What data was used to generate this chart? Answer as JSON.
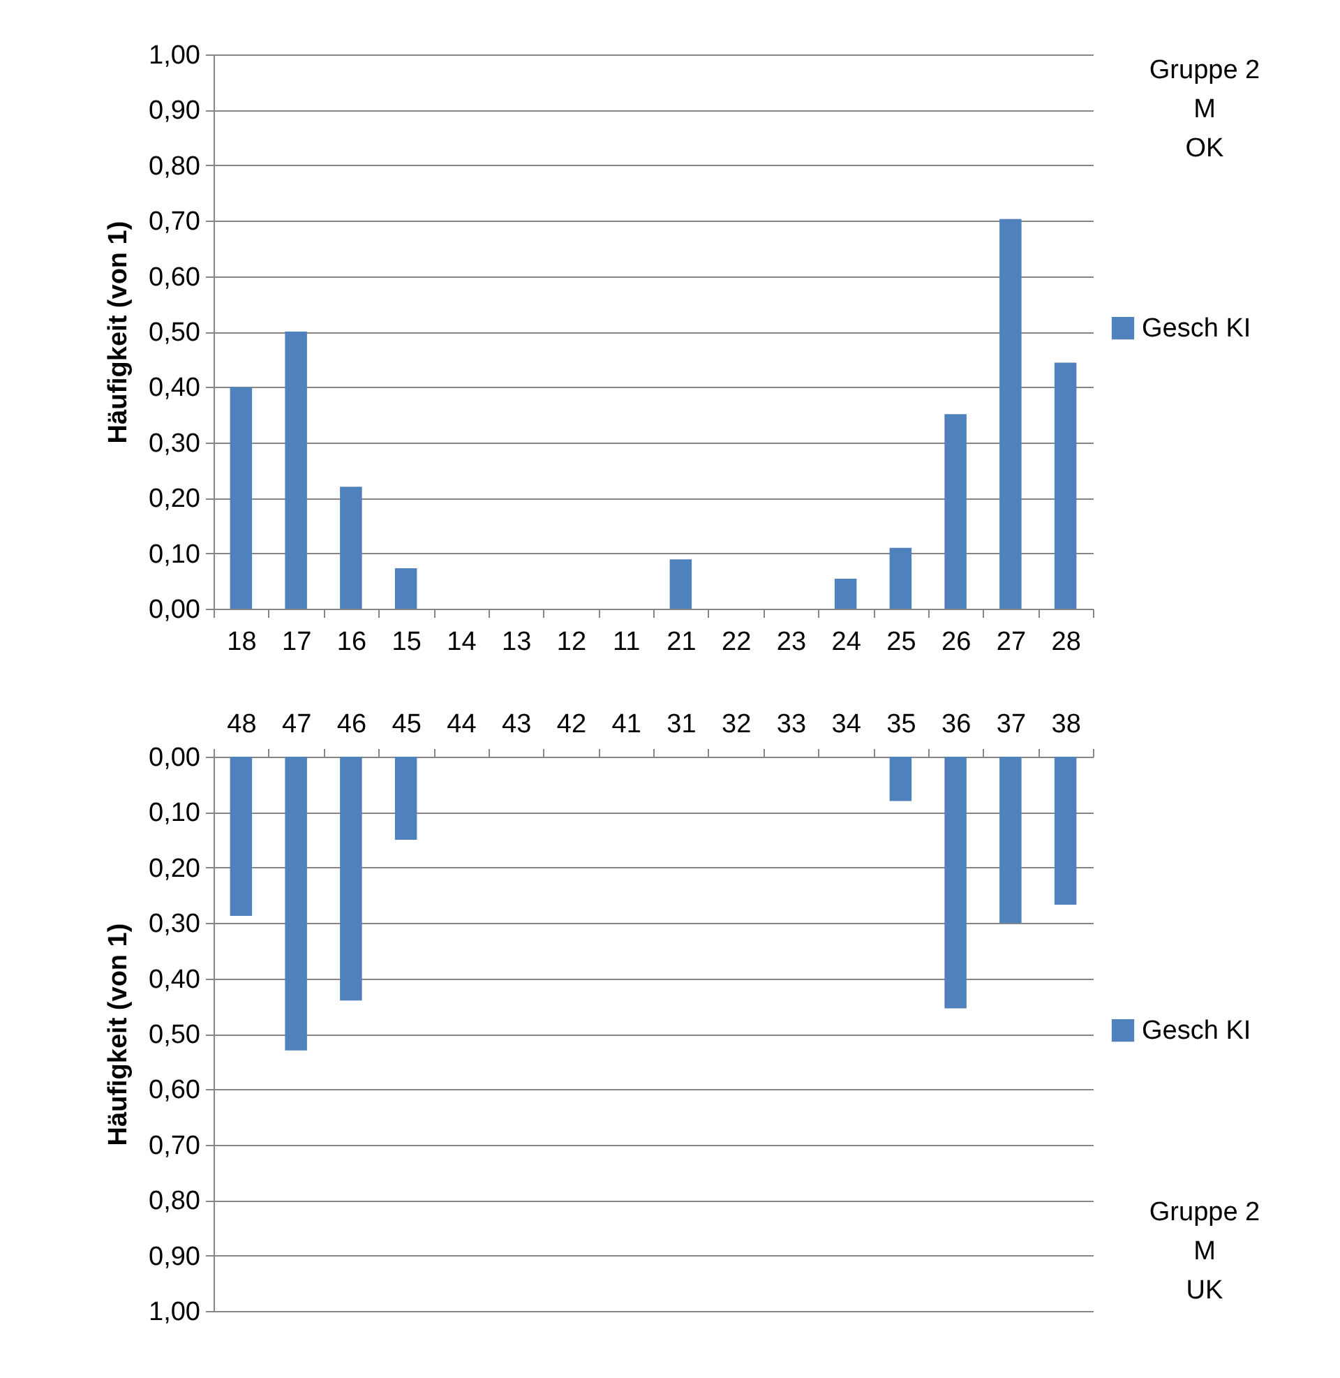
{
  "chart_data": [
    {
      "type": "bar",
      "ylabel": "Häufigkeit (von 1)",
      "categories": [
        "18",
        "17",
        "16",
        "15",
        "14",
        "13",
        "12",
        "11",
        "21",
        "22",
        "23",
        "24",
        "25",
        "26",
        "27",
        "28"
      ],
      "series": [
        {
          "name": "Gesch KI",
          "color": "#4f81bd",
          "values": [
            0.4,
            0.5,
            0.22,
            0.073,
            0,
            0,
            0,
            0,
            0.089,
            0,
            0,
            0.054,
            0.11,
            0.351,
            0.703,
            0.444
          ]
        }
      ],
      "ylim": [
        0,
        1
      ],
      "yticks": [
        {
          "value": 0,
          "label": "0,00"
        },
        {
          "value": 0.1,
          "label": "0,10"
        },
        {
          "value": 0.2,
          "label": "0,20"
        },
        {
          "value": 0.3,
          "label": "0,30"
        },
        {
          "value": 0.4,
          "label": "0,40"
        },
        {
          "value": 0.5,
          "label": "0,50"
        },
        {
          "value": 0.6,
          "label": "0,60"
        },
        {
          "value": 0.7,
          "label": "0,70"
        },
        {
          "value": 0.8,
          "label": "0,80"
        },
        {
          "value": 0.9,
          "label": "0,90"
        },
        {
          "value": 1,
          "label": "1,00"
        }
      ],
      "grid": "y",
      "legend": "right",
      "annotations": [
        "Gruppe 2\nM\nOK"
      ]
    },
    {
      "type": "bar",
      "ylabel": "Häufigkeit (von 1)",
      "categories": [
        "48",
        "47",
        "46",
        "45",
        "44",
        "43",
        "42",
        "41",
        "31",
        "32",
        "33",
        "34",
        "35",
        "36",
        "37",
        "38"
      ],
      "series": [
        {
          "name": "Gesch KI",
          "color": "#4f81bd",
          "values": [
            0.287,
            0.53,
            0.44,
            0.15,
            0,
            0,
            0,
            0,
            0,
            0,
            0,
            0,
            0.08,
            0.454,
            0.3,
            0.267
          ]
        }
      ],
      "ylim": [
        1,
        0
      ],
      "yticks": [
        {
          "value": 0,
          "label": "0,00"
        },
        {
          "value": 0.1,
          "label": "0,10"
        },
        {
          "value": 0.2,
          "label": "0,20"
        },
        {
          "value": 0.3,
          "label": "0,30"
        },
        {
          "value": 0.4,
          "label": "0,40"
        },
        {
          "value": 0.5,
          "label": "0,50"
        },
        {
          "value": 0.6,
          "label": "0,60"
        },
        {
          "value": 0.7,
          "label": "0,70"
        },
        {
          "value": 0.8,
          "label": "0,80"
        },
        {
          "value": 0.9,
          "label": "0,90"
        },
        {
          "value": 1,
          "label": "1,00"
        }
      ],
      "grid": "y",
      "legend": "right",
      "annotations": [
        "Gruppe 2\nM\nUK"
      ]
    }
  ]
}
